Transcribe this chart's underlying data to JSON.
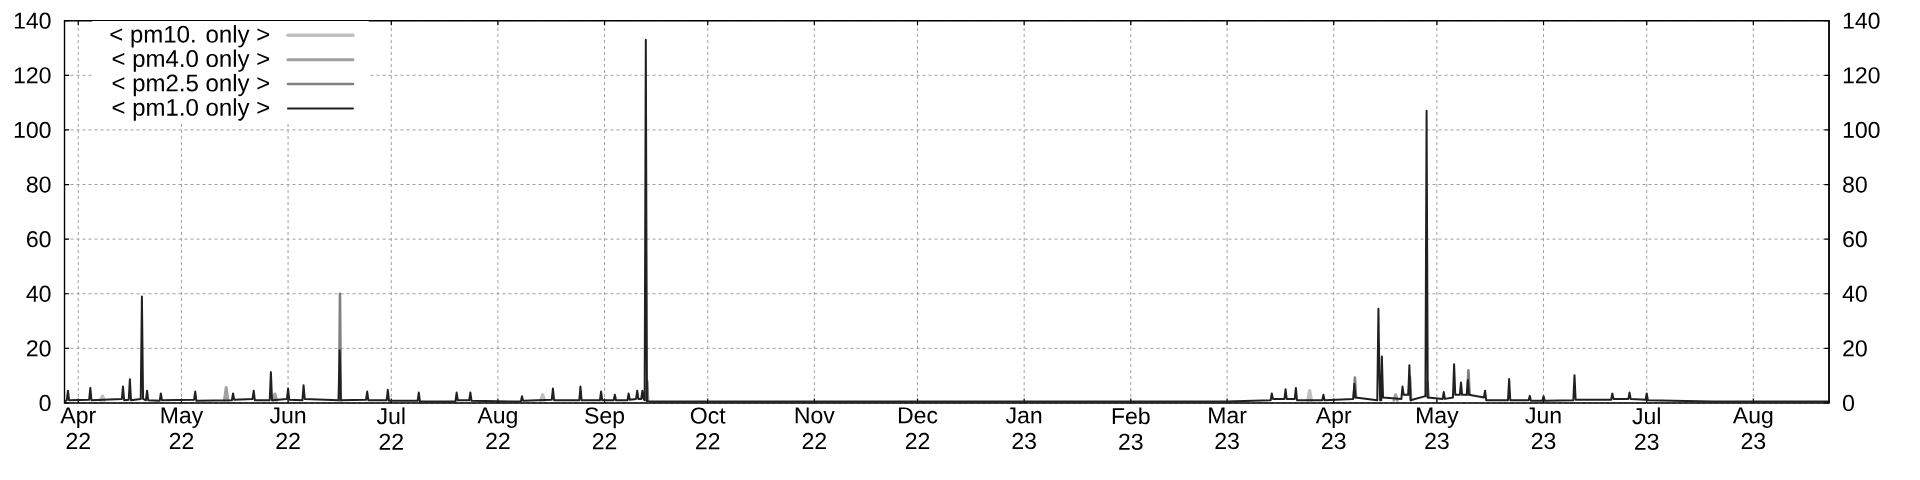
{
  "chart_data": {
    "type": "line",
    "xlim": [
      "2022-03-28",
      "2023-08-23"
    ],
    "xticks": [
      {
        "value": "2022-04-01",
        "label": "Apr 22"
      },
      {
        "value": "2022-05-01",
        "label": "May 22"
      },
      {
        "value": "2022-06-01",
        "label": "Jun 22"
      },
      {
        "value": "2022-07-01",
        "label": "Jul 22"
      },
      {
        "value": "2022-08-01",
        "label": "Aug 22"
      },
      {
        "value": "2022-09-01",
        "label": "Sep 22"
      },
      {
        "value": "2022-10-01",
        "label": "Oct 22"
      },
      {
        "value": "2022-11-01",
        "label": "Nov 22"
      },
      {
        "value": "2022-12-01",
        "label": "Dec 22"
      },
      {
        "value": "2023-01-01",
        "label": "Jan 23"
      },
      {
        "value": "2023-02-01",
        "label": "Feb 23"
      },
      {
        "value": "2023-03-01",
        "label": "Mar 23"
      },
      {
        "value": "2023-04-01",
        "label": "Apr 23"
      },
      {
        "value": "2023-05-01",
        "label": "May 23"
      },
      {
        "value": "2023-06-01",
        "label": "Jun 23"
      },
      {
        "value": "2023-07-01",
        "label": "Jul 23"
      },
      {
        "value": "2023-08-01",
        "label": "Aug 23"
      }
    ],
    "ylim": [
      0,
      140
    ],
    "yticks": [
      0,
      20,
      40,
      60,
      80,
      100,
      120,
      140
    ],
    "y2lim": [
      0,
      140
    ],
    "y2ticks": [
      0,
      20,
      40,
      60,
      80,
      100,
      120,
      140
    ],
    "grid": true,
    "legend": "top left",
    "series": [
      {
        "name": "< pm10. only >",
        "color": "#c0c0c0",
        "x": [
          "2022-04-07T12:00",
          "2022-04-08",
          "2022-04-08T12:00",
          "2022-06-01",
          "2022-08-13T12:00",
          "2022-08-14",
          "2022-08-14T12:00",
          "2022-12-01",
          "2023-03-24T12:00",
          "2023-03-25",
          "2023-03-25T12:00"
        ],
        "values": [
          1,
          2.5,
          1,
          null,
          1,
          3,
          1,
          null,
          1,
          4.5,
          1
        ]
      },
      {
        "name": "< pm4.0 only >",
        "color": "#a0a0a0",
        "x": [
          "2022-05-13T12:00",
          "2022-05-14",
          "2022-05-14T12:00",
          "2022-05-20",
          "2022-05-27T16:00",
          "2022-05-28T04:00",
          "2022-05-28T16:00",
          "2023-01-01",
          "2023-04-18T12:00",
          "2023-04-19",
          "2023-04-19T12:00"
        ],
        "values": [
          1,
          5.7,
          1,
          null,
          1,
          3.3,
          1,
          null,
          1,
          3,
          1
        ]
      },
      {
        "name": "< pm2.5 only >",
        "color": "#808080",
        "x": [
          "2022-06-15T20:00",
          "2022-06-16T02:00",
          "2022-06-16T08:00",
          "2022-07-01",
          "2022-09-13T04:00",
          "2022-09-13T10:00",
          "2022-09-13T16:00",
          "2023-01-01",
          "2023-04-06T20:00",
          "2023-04-07T04:00",
          "2023-04-07T12:00",
          "2023-04-15T12:00",
          "2023-04-22T20:00",
          "2023-04-23T04:00",
          "2023-04-23T12:00",
          "2023-04-25",
          "2023-04-27T20:00",
          "2023-04-28T06:00",
          "2023-04-28T14:00",
          "2023-05-01",
          "2023-05-09T20:00",
          "2023-05-10T04:00",
          "2023-05-10T12:00"
        ],
        "values": [
          1,
          40,
          1,
          null,
          1,
          8,
          0.5,
          null,
          2,
          9.3,
          2,
          null,
          3,
          9.6,
          1,
          null,
          2.5,
          7.7,
          2,
          null,
          3,
          12,
          3
        ]
      },
      {
        "name": "< pm1.0 only >",
        "color": "#202020",
        "x": [
          "2022-03-28",
          "2022-03-28T16:00",
          "2022-03-29",
          "2022-03-29T08:00",
          "2022-04-04T04:00",
          "2022-04-04T12:00",
          "2022-04-04T20:00",
          "2022-04-13T16:00",
          "2022-04-14",
          "2022-04-14T08:00",
          "2022-04-15T16:00",
          "2022-04-16",
          "2022-04-16T08:00",
          "2022-04-19T04:00",
          "2022-04-19T12:00",
          "2022-04-19T20:00",
          "2022-04-20T16:00",
          "2022-04-21",
          "2022-04-21T08:00",
          "2022-04-24T16:00",
          "2022-04-25",
          "2022-04-25T08:00",
          "2022-05-04T16:00",
          "2022-05-05",
          "2022-05-05T08:00",
          "2022-05-15T16:00",
          "2022-05-16",
          "2022-05-16T08:00",
          "2022-05-21T16:00",
          "2022-05-22",
          "2022-05-22T08:00",
          "2022-05-26T16:00",
          "2022-05-27",
          "2022-05-27T08:00",
          "2022-05-31T16:00",
          "2022-06-01",
          "2022-06-01T08:00",
          "2022-06-05T04:00",
          "2022-06-05T12:00",
          "2022-06-05T20:00",
          "2022-06-15T16:00",
          "2022-06-16",
          "2022-06-16T08:00",
          "2022-06-23T16:00",
          "2022-06-24",
          "2022-06-24T08:00",
          "2022-06-29T16:00",
          "2022-06-30",
          "2022-06-30T08:00",
          "2022-07-08T16:00",
          "2022-07-09",
          "2022-07-09T08:00",
          "2022-07-19T16:00",
          "2022-07-20",
          "2022-07-20T08:00",
          "2022-07-23T16:00",
          "2022-07-24",
          "2022-07-24T08:00",
          "2022-08-07T16:00",
          "2022-08-08",
          "2022-08-08T08:00",
          "2022-08-16T16:00",
          "2022-08-17",
          "2022-08-17T08:00",
          "2022-08-24T16:00",
          "2022-08-25",
          "2022-08-25T08:00",
          "2022-08-30T16:00",
          "2022-08-31",
          "2022-08-31T08:00",
          "2022-09-03T16:00",
          "2022-09-04",
          "2022-09-04T08:00",
          "2022-09-07T16:00",
          "2022-09-08",
          "2022-09-08T08:00",
          "2022-09-10T04:00",
          "2022-09-10T12:00",
          "2022-09-10T20:00",
          "2022-09-11T16:00",
          "2022-09-12",
          "2022-09-12T08:00",
          "2022-09-12T16:00",
          "2022-09-13",
          "2022-09-13T08:00",
          "2023-03-01",
          "2023-03-13T16:00",
          "2023-03-14",
          "2023-03-14T08:00",
          "2023-03-17T16:00",
          "2023-03-18",
          "2023-03-18T08:00",
          "2023-03-20T16:00",
          "2023-03-21",
          "2023-03-21T08:00",
          "2023-03-28T16:00",
          "2023-03-29",
          "2023-03-29T08:00",
          "2023-04-06T16:00",
          "2023-04-07",
          "2023-04-07T08:00",
          "2023-04-13T16:00",
          "2023-04-14",
          "2023-04-14T04:00",
          "2023-04-14T12:00",
          "2023-04-14T20:00",
          "2023-04-15",
          "2023-04-15T08:00",
          "2023-04-20T16:00",
          "2023-04-21",
          "2023-04-21T08:00",
          "2023-04-22T16:00",
          "2023-04-23",
          "2023-04-23T08:00",
          "2023-04-27T16:00",
          "2023-04-28",
          "2023-04-28T08:00",
          "2023-05-02T16:00",
          "2023-05-03",
          "2023-05-03T08:00",
          "2023-05-05T16:00",
          "2023-05-06",
          "2023-05-06T08:00",
          "2023-05-07T16:00",
          "2023-05-08",
          "2023-05-08T08:00",
          "2023-05-09T16:00",
          "2023-05-10",
          "2023-05-10T08:00",
          "2023-05-14T16:00",
          "2023-05-15",
          "2023-05-15T08:00",
          "2023-05-21T16:00",
          "2023-05-22",
          "2023-05-22T08:00",
          "2023-05-27T16:00",
          "2023-05-28",
          "2023-05-28T08:00",
          "2023-05-31T16:00",
          "2023-06-01",
          "2023-06-01T08:00",
          "2023-06-09T16:00",
          "2023-06-10",
          "2023-06-10T08:00",
          "2023-06-20T16:00",
          "2023-06-21",
          "2023-06-21T08:00",
          "2023-06-25T16:00",
          "2023-06-26",
          "2023-06-26T08:00",
          "2023-06-30T16:00",
          "2023-07-01",
          "2023-07-01T08:00",
          "2023-07-20",
          "2023-08-23"
        ],
        "values": [
          0.5,
          1,
          4.5,
          1,
          1.2,
          5.5,
          1,
          1.5,
          6,
          1,
          1.2,
          8.7,
          1,
          1.5,
          39,
          1.5,
          1,
          4.5,
          1,
          0.8,
          3.5,
          1,
          1.2,
          4.2,
          0.8,
          1,
          3.5,
          1.2,
          1.5,
          4.5,
          1,
          1,
          11.3,
          1,
          1.5,
          5.3,
          1.2,
          1,
          6.5,
          1.5,
          1,
          19.3,
          1,
          1.2,
          4.2,
          1,
          1,
          4.8,
          0.8,
          0.8,
          3.8,
          0.5,
          0.5,
          3.8,
          1,
          1,
          3.8,
          0.8,
          0.5,
          2.5,
          0.8,
          1.2,
          5.3,
          1,
          1,
          6,
          1,
          1,
          4.2,
          1,
          1,
          3,
          1,
          1,
          3.5,
          1.2,
          1.5,
          4.5,
          1.5,
          1.5,
          4.5,
          1.5,
          1,
          133,
          0.5,
          0.5,
          1,
          3.5,
          1.5,
          1.5,
          5,
          1.5,
          1.5,
          5.5,
          1,
          1,
          3,
          1,
          1.5,
          7,
          2,
          1,
          34.5,
          19,
          1,
          1,
          17,
          2,
          1.5,
          6,
          3,
          3,
          13.8,
          1,
          2.5,
          107,
          2,
          1.5,
          4,
          1.5,
          2,
          14.2,
          3,
          3,
          7.5,
          3,
          3,
          8.4,
          3,
          2,
          4.5,
          1,
          1,
          8.8,
          1,
          1,
          2.6,
          0.8,
          0.8,
          2.5,
          0.8,
          1,
          10.2,
          1.2,
          1.2,
          3.5,
          1.5,
          1.5,
          3.8,
          1.5,
          1.2,
          3.5,
          1,
          0.5,
          0.5
        ]
      }
    ]
  }
}
